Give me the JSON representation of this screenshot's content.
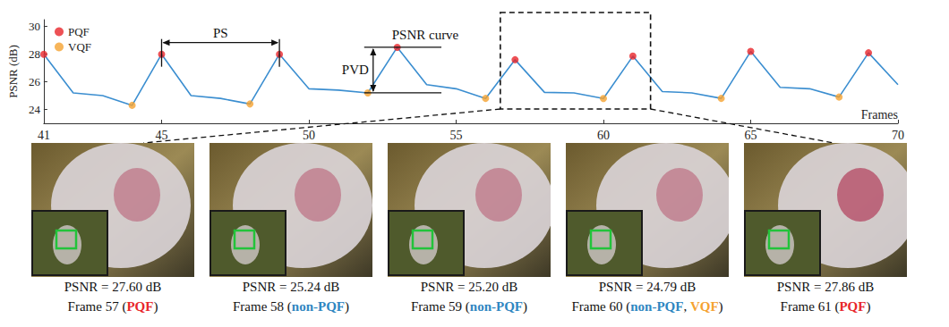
{
  "chart_data": {
    "type": "line",
    "x": [
      41,
      42,
      43,
      44,
      45,
      46,
      47,
      48,
      49,
      50,
      51,
      52,
      53,
      54,
      55,
      56,
      57,
      58,
      59,
      60,
      61,
      62,
      63,
      64,
      65,
      66,
      67,
      68,
      69,
      70
    ],
    "values": [
      28.0,
      25.2,
      25.0,
      24.3,
      28.0,
      25.0,
      24.8,
      24.4,
      28.0,
      25.5,
      25.4,
      25.2,
      28.5,
      25.8,
      25.5,
      24.8,
      27.6,
      25.24,
      25.2,
      24.79,
      27.86,
      25.3,
      25.2,
      24.8,
      28.2,
      25.6,
      25.5,
      24.9,
      28.1,
      25.8
    ],
    "color": "#3b8ed0",
    "series": [
      {
        "name": "PQF",
        "type": "scatter",
        "marker": "circle",
        "color": "#e8262b",
        "x": [
          41,
          45,
          49,
          53,
          57,
          61,
          65,
          69
        ],
        "values": [
          28.0,
          28.0,
          28.0,
          28.5,
          27.6,
          27.86,
          28.2,
          28.1
        ]
      },
      {
        "name": "VQF",
        "type": "scatter",
        "marker": "circle",
        "color": "#f5a231",
        "x": [
          44,
          48,
          52,
          56,
          60,
          64,
          68
        ],
        "values": [
          24.3,
          24.4,
          25.2,
          24.8,
          24.79,
          24.8,
          24.9
        ]
      }
    ],
    "xlabel": "Frames",
    "ylabel": "PSNR (dB)",
    "xlim": [
      41,
      70
    ],
    "xticks": [
      41,
      45,
      50,
      55,
      60,
      65,
      70
    ],
    "ylim": [
      23,
      30.5
    ],
    "yticks": [
      24,
      26,
      28,
      30
    ],
    "legend": "upper left",
    "grid": false,
    "annotations": {
      "period": {
        "text": "PS",
        "frames": [
          45,
          49
        ]
      },
      "difference": {
        "text": "PVD",
        "frames": [
          52,
          53
        ]
      },
      "curve": {
        "text": "PSNR curve"
      }
    }
  },
  "panels": [
    {
      "frame": 57,
      "psnr": "PSNR = 27.60 dB",
      "caption": [
        {
          "text": "Frame 57 ("
        },
        {
          "text": "PQF",
          "color": "#e8262b"
        },
        {
          "text": ")"
        }
      ]
    },
    {
      "frame": 58,
      "psnr": "PSNR = 25.24 dB",
      "caption": [
        {
          "text": "Frame 58 ("
        },
        {
          "text": "non-PQF",
          "color": "#2e86c1"
        },
        {
          "text": ")"
        }
      ]
    },
    {
      "frame": 59,
      "psnr": "PSNR = 25.20 dB",
      "caption": [
        {
          "text": "Frame 59 ("
        },
        {
          "text": "non-PQF",
          "color": "#2e86c1"
        },
        {
          "text": ")"
        }
      ]
    },
    {
      "frame": 60,
      "psnr": "PSNR = 24.79 dB",
      "caption": [
        {
          "text": "Frame 60 ("
        },
        {
          "text": "non-PQF",
          "color": "#2e86c1"
        },
        {
          "text": ", "
        },
        {
          "text": "VQF",
          "color": "#f5a231"
        },
        {
          "text": ")"
        }
      ]
    },
    {
      "frame": 61,
      "psnr": "PSNR = 27.86 dB",
      "caption": [
        {
          "text": "Frame 61 ("
        },
        {
          "text": "PQF",
          "color": "#e8262b"
        },
        {
          "text": ")"
        }
      ]
    }
  ]
}
